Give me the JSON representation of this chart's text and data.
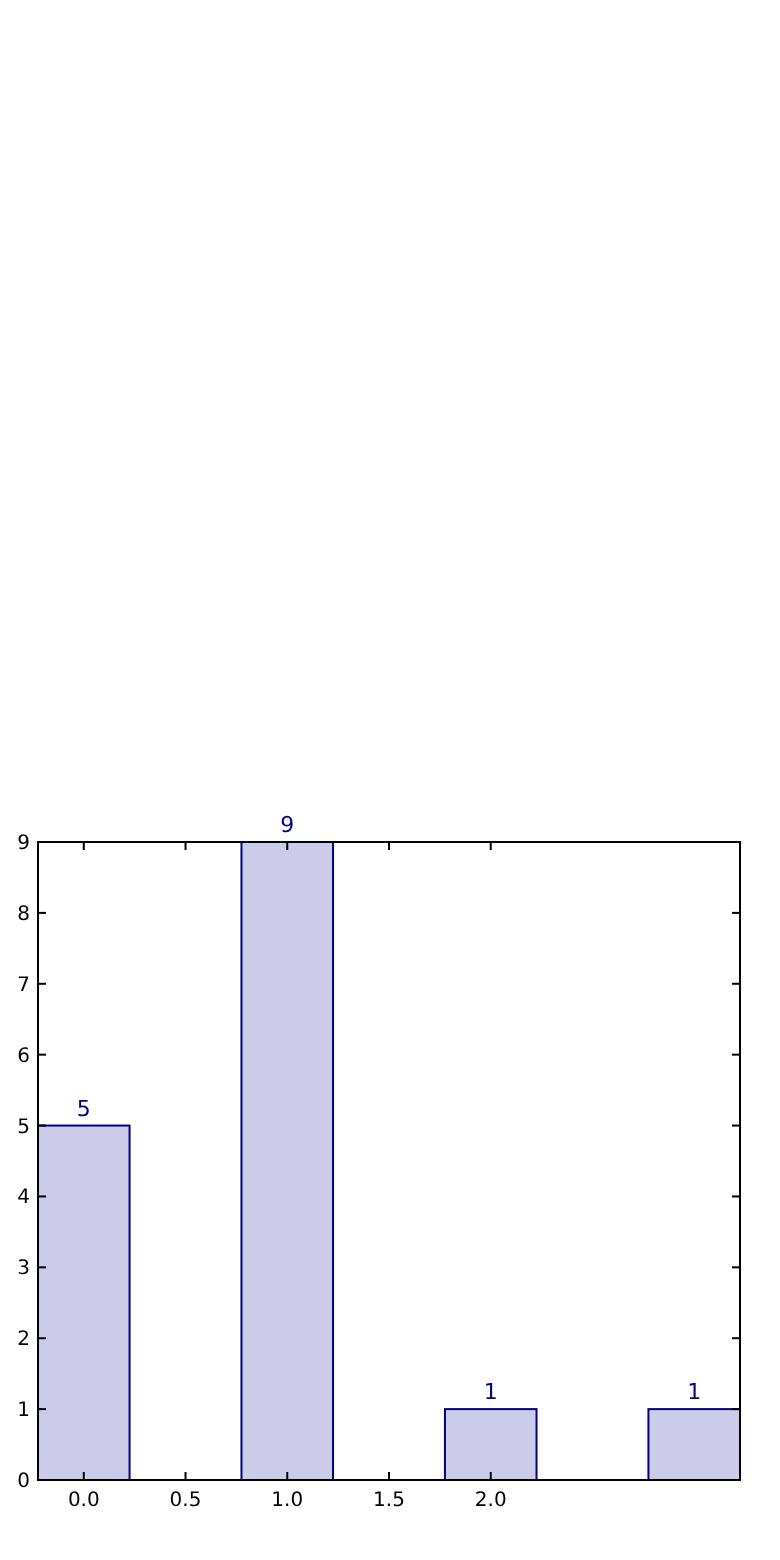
{
  "chart_data": {
    "type": "bar",
    "x": [
      0,
      1,
      2,
      3
    ],
    "values": [
      5,
      9,
      1,
      1
    ],
    "color": "#ccccea",
    "data_labels": true,
    "xlim": [
      -0.225,
      3.225
    ],
    "xticks": [
      {
        "value": 0,
        "label": "0.0"
      },
      {
        "value": 0.5,
        "label": "0.5"
      },
      {
        "value": 1,
        "label": "1.0"
      },
      {
        "value": 1.5,
        "label": "1.5"
      },
      {
        "value": 2,
        "label": "2.0"
      }
    ],
    "ylim": [
      0,
      9
    ],
    "yticks": [
      0,
      1,
      2,
      3,
      4,
      5,
      6,
      7,
      8,
      9
    ],
    "grid": false
  }
}
